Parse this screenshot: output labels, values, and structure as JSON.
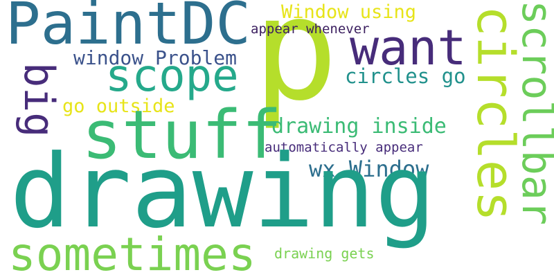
{
  "words": {
    "paintdc": {
      "text": "PaintDC",
      "color": "#2d6f8e"
    },
    "p": {
      "text": "p",
      "color": "#b5de2b"
    },
    "want": {
      "text": "want",
      "color": "#472c7a"
    },
    "circles_vert": {
      "text": "circles",
      "color": "#b5de2b"
    },
    "scrollbar": {
      "text": "scrollbar",
      "color": "#6ccd5a"
    },
    "window_using": {
      "text": "Window using",
      "color": "#e7e419"
    },
    "appear_whenever": {
      "text": "appear whenever",
      "color": "#3b1f5f"
    },
    "scope": {
      "text": "scope",
      "color": "#25a98b"
    },
    "window_problem": {
      "text": "window Problem",
      "color": "#3b528b"
    },
    "big": {
      "text": "big",
      "color": "#472c7a"
    },
    "circles_go": {
      "text": "circles go",
      "color": "#21918c"
    },
    "go_outside": {
      "text": "go outside",
      "color": "#e7e419"
    },
    "stuff": {
      "text": "stuff",
      "color": "#3bbb75"
    },
    "drawing_inside": {
      "text": "drawing inside",
      "color": "#3bbb75"
    },
    "automatically_appear": {
      "text": "automatically appear",
      "color": "#472c7a"
    },
    "wx_window": {
      "text": "wx Window",
      "color": "#2d6f8e"
    },
    "drawing": {
      "text": "drawing",
      "color": "#1f9e89"
    },
    "sometimes": {
      "text": "sometimes",
      "color": "#7ad151"
    },
    "drawing_gets": {
      "text": "drawing gets",
      "color": "#7ad151"
    }
  }
}
